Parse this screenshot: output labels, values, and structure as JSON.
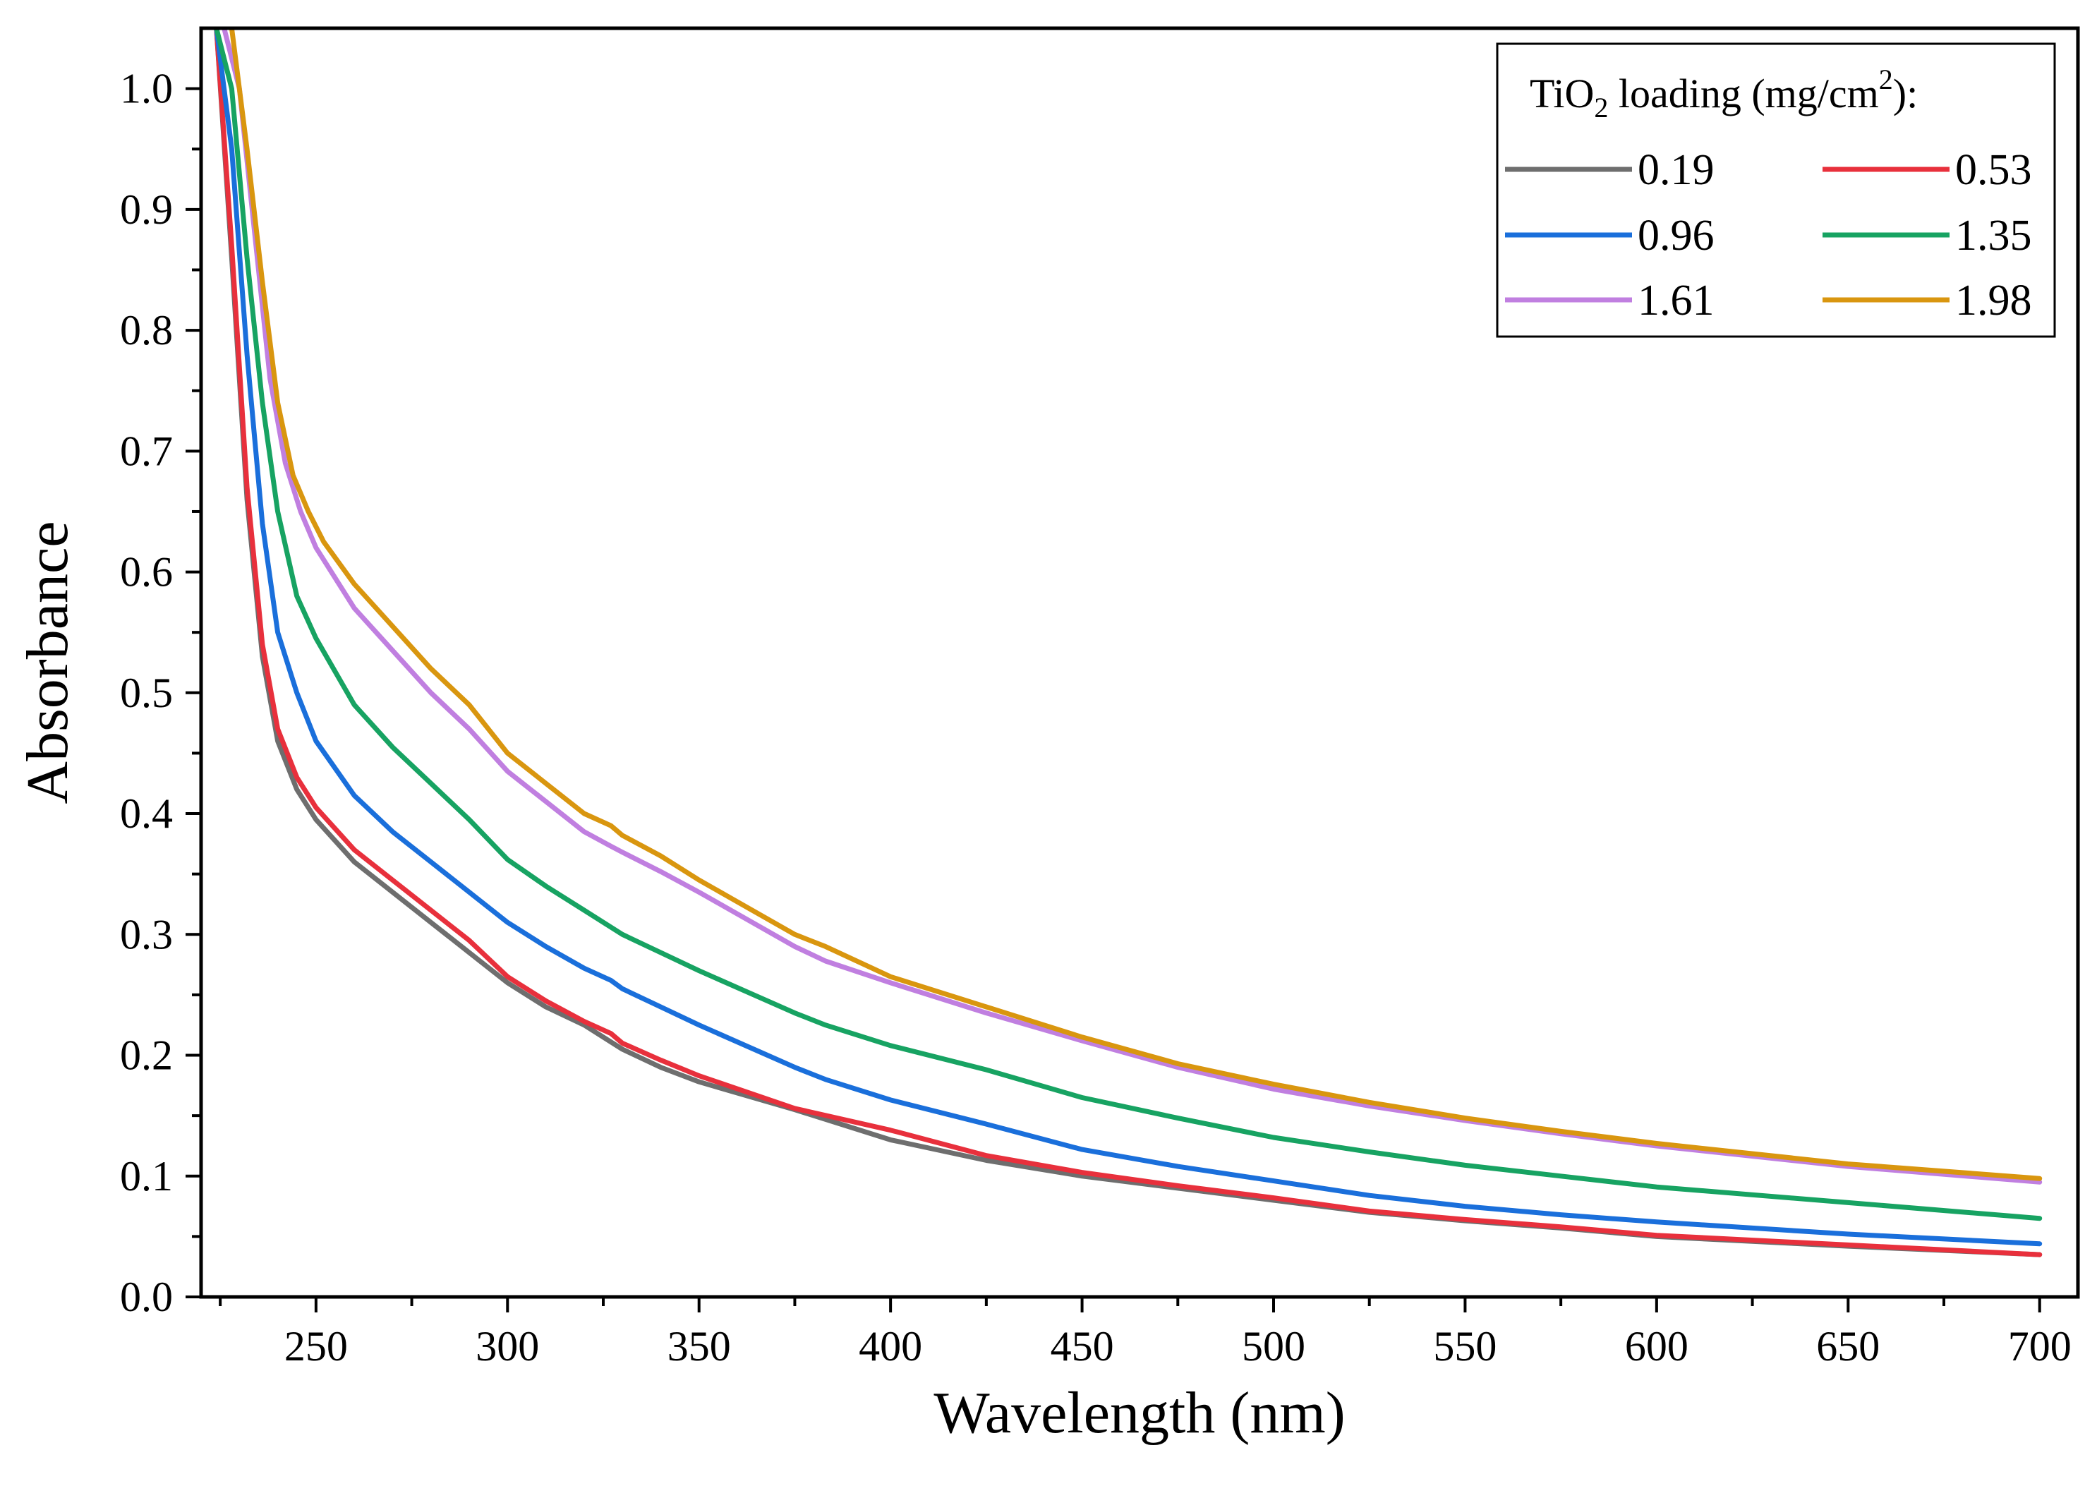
{
  "chart_data": {
    "type": "line",
    "title": "",
    "xlabel": "Wavelength (nm)",
    "ylabel": "Absorbance",
    "xlim": [
      220,
      710
    ],
    "ylim": [
      0.0,
      1.05
    ],
    "xticks": [
      250,
      300,
      350,
      400,
      450,
      500,
      550,
      600,
      650,
      700
    ],
    "xtick_labels": [
      "250",
      "300",
      "350",
      "400",
      "450",
      "500",
      "550",
      "600",
      "650",
      "700"
    ],
    "yticks": [
      0.0,
      0.1,
      0.2,
      0.3,
      0.4,
      0.5,
      0.6,
      0.7,
      0.8,
      0.9,
      1.0
    ],
    "ytick_labels": [
      "0.0",
      "0.1",
      "0.2",
      "0.3",
      "0.4",
      "0.5",
      "0.6",
      "0.7",
      "0.8",
      "0.9",
      "1.0"
    ],
    "grid": false,
    "legend": {
      "placement": "top-right",
      "title_main": "TiO",
      "title_sub": "2",
      "title_mid": " loading (mg/cm",
      "title_sup": "2",
      "title_end": "):"
    },
    "series": [
      {
        "name": "0.19",
        "color": "#6e6e6e",
        "x": [
          224,
          228,
          232,
          236,
          240,
          245,
          250,
          260,
          270,
          280,
          290,
          300,
          310,
          320,
          330,
          340,
          350,
          375,
          400,
          425,
          450,
          475,
          500,
          525,
          550,
          575,
          600,
          650,
          700
        ],
        "y": [
          1.05,
          0.86,
          0.66,
          0.53,
          0.46,
          0.42,
          0.395,
          0.36,
          0.335,
          0.31,
          0.285,
          0.26,
          0.24,
          0.225,
          0.205,
          0.19,
          0.178,
          0.155,
          0.13,
          0.113,
          0.1,
          0.09,
          0.08,
          0.07,
          0.063,
          0.057,
          0.05,
          0.042,
          0.035
        ]
      },
      {
        "name": "0.53",
        "color": "#e8303c",
        "x": [
          224,
          228,
          232,
          236,
          240,
          245,
          250,
          260,
          270,
          280,
          290,
          300,
          310,
          320,
          327,
          330,
          340,
          350,
          375,
          400,
          425,
          450,
          475,
          500,
          525,
          550,
          575,
          600,
          650,
          700
        ],
        "y": [
          1.05,
          0.87,
          0.67,
          0.54,
          0.47,
          0.43,
          0.405,
          0.37,
          0.345,
          0.32,
          0.295,
          0.265,
          0.245,
          0.228,
          0.218,
          0.21,
          0.196,
          0.183,
          0.156,
          0.138,
          0.117,
          0.103,
          0.092,
          0.082,
          0.071,
          0.064,
          0.058,
          0.051,
          0.043,
          0.035
        ]
      },
      {
        "name": "0.96",
        "color": "#1a6fdb",
        "x": [
          224,
          228,
          232,
          236,
          240,
          245,
          250,
          260,
          270,
          280,
          290,
          300,
          310,
          320,
          327,
          330,
          340,
          350,
          375,
          383,
          400,
          425,
          450,
          475,
          500,
          525,
          550,
          575,
          600,
          650,
          700
        ],
        "y": [
          1.05,
          0.95,
          0.78,
          0.64,
          0.55,
          0.5,
          0.46,
          0.415,
          0.385,
          0.36,
          0.335,
          0.31,
          0.29,
          0.272,
          0.262,
          0.255,
          0.24,
          0.225,
          0.19,
          0.18,
          0.163,
          0.143,
          0.122,
          0.108,
          0.096,
          0.084,
          0.075,
          0.068,
          0.062,
          0.052,
          0.044
        ]
      },
      {
        "name": "1.35",
        "color": "#17a362",
        "x": [
          224,
          228,
          232,
          236,
          240,
          245,
          250,
          260,
          270,
          280,
          290,
          300,
          310,
          320,
          330,
          340,
          350,
          375,
          383,
          400,
          425,
          450,
          475,
          500,
          525,
          550,
          575,
          600,
          650,
          700
        ],
        "y": [
          1.05,
          1.0,
          0.86,
          0.74,
          0.65,
          0.58,
          0.545,
          0.49,
          0.455,
          0.425,
          0.395,
          0.362,
          0.34,
          0.32,
          0.3,
          0.285,
          0.27,
          0.235,
          0.225,
          0.208,
          0.188,
          0.165,
          0.148,
          0.132,
          0.12,
          0.109,
          0.1,
          0.091,
          0.078,
          0.065
        ]
      },
      {
        "name": "1.61",
        "color": "#c07fe0",
        "x": [
          226,
          230,
          234,
          238,
          242,
          246,
          250,
          260,
          270,
          280,
          290,
          300,
          310,
          320,
          327,
          330,
          340,
          350,
          375,
          383,
          400,
          425,
          450,
          475,
          500,
          525,
          550,
          575,
          600,
          650,
          700
        ],
        "y": [
          1.05,
          1.0,
          0.88,
          0.76,
          0.69,
          0.65,
          0.62,
          0.57,
          0.535,
          0.5,
          0.47,
          0.435,
          0.41,
          0.385,
          0.373,
          0.368,
          0.352,
          0.335,
          0.29,
          0.278,
          0.26,
          0.235,
          0.212,
          0.19,
          0.172,
          0.158,
          0.146,
          0.135,
          0.125,
          0.108,
          0.095
        ]
      },
      {
        "name": "1.98",
        "color": "#d9960f",
        "x": [
          228,
          232,
          236,
          240,
          244,
          248,
          252,
          260,
          270,
          280,
          290,
          300,
          310,
          320,
          327,
          330,
          340,
          350,
          375,
          383,
          400,
          425,
          450,
          475,
          500,
          525,
          550,
          575,
          600,
          650,
          700
        ],
        "y": [
          1.05,
          0.95,
          0.84,
          0.74,
          0.68,
          0.65,
          0.625,
          0.59,
          0.555,
          0.52,
          0.49,
          0.45,
          0.425,
          0.4,
          0.39,
          0.382,
          0.365,
          0.345,
          0.3,
          0.29,
          0.265,
          0.24,
          0.215,
          0.193,
          0.176,
          0.161,
          0.148,
          0.137,
          0.127,
          0.11,
          0.098
        ]
      }
    ]
  }
}
